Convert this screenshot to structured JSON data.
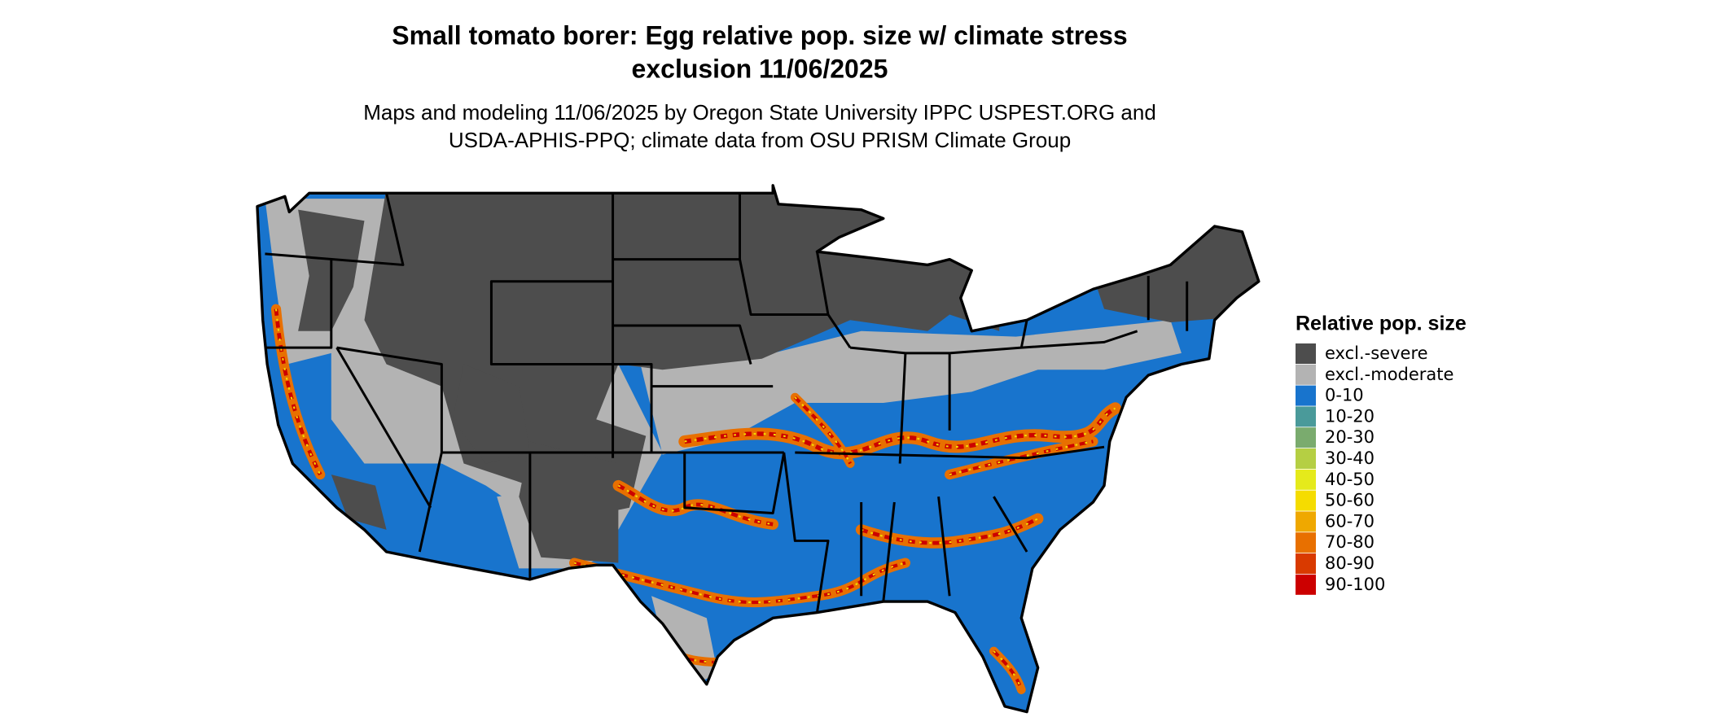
{
  "header": {
    "title": [
      "Small tomato borer: Egg relative pop. size w/ climate stress",
      "exclusion 11/06/2025"
    ],
    "subtitle": [
      "Maps and modeling 11/06/2025 by Oregon State University IPPC USPEST.ORG and",
      "USDA-APHIS-PPQ; climate data from OSU PRISM Climate Group"
    ]
  },
  "legend": {
    "title": "Relative pop. size",
    "items": [
      {
        "label": "excl.-severe",
        "color": "#4d4d4d"
      },
      {
        "label": "excl.-moderate",
        "color": "#b3b3b3"
      },
      {
        "label": "0-10",
        "color": "#1874cd"
      },
      {
        "label": "10-20",
        "color": "#4a9a9a"
      },
      {
        "label": "20-30",
        "color": "#7aab6e"
      },
      {
        "label": "30-40",
        "color": "#b5cf43"
      },
      {
        "label": "40-50",
        "color": "#e5ea1b"
      },
      {
        "label": "50-60",
        "color": "#f5dc00"
      },
      {
        "label": "60-70",
        "color": "#efa800"
      },
      {
        "label": "70-80",
        "color": "#e87000"
      },
      {
        "label": "80-90",
        "color": "#d93a00"
      },
      {
        "label": "90-100",
        "color": "#cc0000"
      }
    ]
  }
}
